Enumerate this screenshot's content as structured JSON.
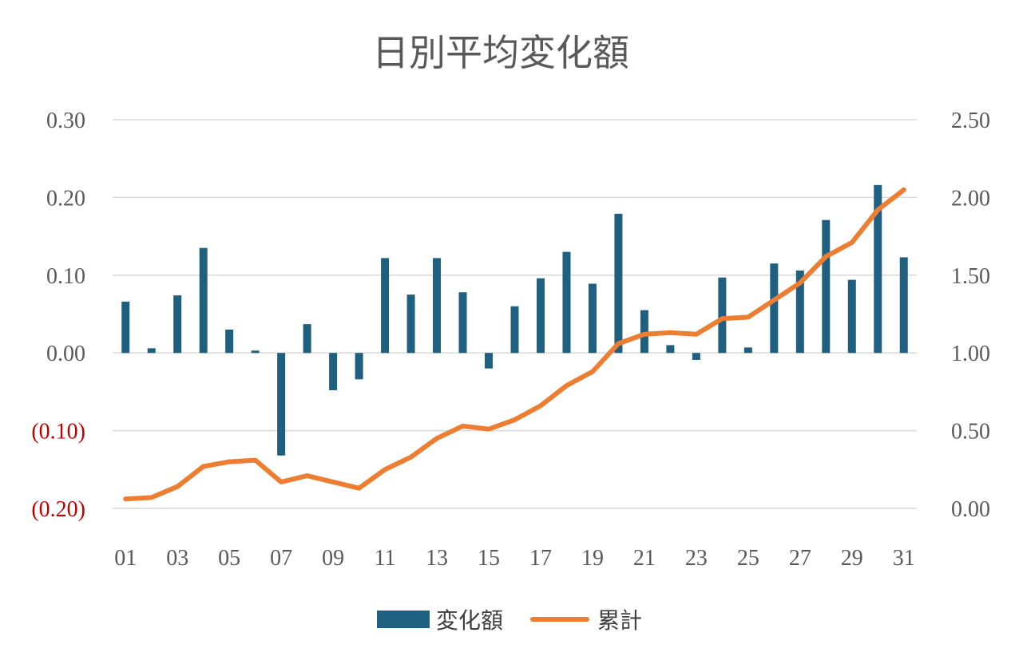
{
  "chart_data": {
    "type": "bar+line",
    "title": "日別平均変化額",
    "categories": [
      "01",
      "02",
      "03",
      "04",
      "05",
      "06",
      "07",
      "08",
      "09",
      "10",
      "11",
      "12",
      "13",
      "14",
      "15",
      "16",
      "17",
      "18",
      "19",
      "20",
      "21",
      "22",
      "23",
      "24",
      "25",
      "26",
      "27",
      "28",
      "29",
      "30",
      "31"
    ],
    "x_tick_labels": [
      "01",
      "03",
      "05",
      "07",
      "09",
      "11",
      "13",
      "15",
      "17",
      "19",
      "21",
      "23",
      "25",
      "27",
      "29",
      "31"
    ],
    "series": [
      {
        "name": "変化額",
        "type": "bar",
        "axis": "left",
        "color": "#1f5f7f",
        "values": [
          0.066,
          0.006,
          0.074,
          0.135,
          0.03,
          0.003,
          -0.132,
          0.037,
          -0.048,
          -0.034,
          0.122,
          0.075,
          0.122,
          0.078,
          -0.02,
          0.06,
          0.096,
          0.13,
          0.089,
          0.179,
          0.055,
          0.01,
          -0.009,
          0.097,
          0.007,
          0.115,
          0.106,
          0.171,
          0.094,
          0.216,
          0.123
        ]
      },
      {
        "name": "累計",
        "type": "line",
        "axis": "right",
        "color": "#ed7d31",
        "values": [
          0.06,
          0.07,
          0.14,
          0.27,
          0.3,
          0.31,
          0.17,
          0.21,
          0.17,
          0.13,
          0.25,
          0.33,
          0.45,
          0.53,
          0.51,
          0.57,
          0.66,
          0.79,
          0.88,
          1.06,
          1.12,
          1.13,
          1.12,
          1.22,
          1.23,
          1.34,
          1.45,
          1.62,
          1.71,
          1.92,
          2.05
        ]
      }
    ],
    "y_left": {
      "min": -0.2,
      "max": 0.3,
      "step": 0.1,
      "tick_labels": [
        "0.30",
        "0.20",
        "0.10",
        "0.00",
        "(0.10)",
        "(0.20)"
      ],
      "negative_color": "#c00000"
    },
    "y_right": {
      "min": 0,
      "max": 2.5,
      "step": 0.5,
      "tick_labels": [
        "2.50",
        "2.00",
        "1.50",
        "1.00",
        "0.50",
        "0.00"
      ]
    },
    "grid": true,
    "legend_position": "bottom"
  }
}
